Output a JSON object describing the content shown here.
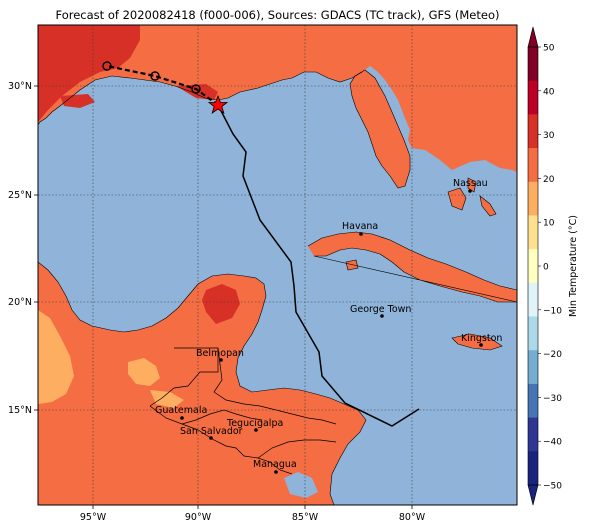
{
  "title": "Forecast of 2020082418 (f000-006), Sources: GDACS (TC track), GFS (Meteo)",
  "colors": {
    "ocean": "#8fb3d9",
    "land_very_hot": "#d73027",
    "land_hot": "#f46d43",
    "land_warm": "#fdae61",
    "grid": "#3b3b3b",
    "track": "#000000",
    "storm_marker": "#ff0000"
  },
  "axes": {
    "lon_labels": [
      "95°W",
      "90°W",
      "85°W",
      "80°W"
    ],
    "lat_labels": [
      "15°N",
      "20°N",
      "25°N",
      "30°N"
    ]
  },
  "cities": [
    {
      "name": "Nassau"
    },
    {
      "name": "Havana"
    },
    {
      "name": "George Town"
    },
    {
      "name": "Kingston"
    },
    {
      "name": "Belmopan"
    },
    {
      "name": "Guatemala"
    },
    {
      "name": "Tegucigalpa"
    },
    {
      "name": "San Salvador"
    },
    {
      "name": "Managua"
    }
  ],
  "track_icon": "hurricane-track-circle-icon",
  "storm_icon": "red-star-icon",
  "colorbar": {
    "label": "Min Temperature (°C)",
    "ticks": [
      "50",
      "40",
      "30",
      "20",
      "10",
      "0",
      "−10",
      "−20",
      "−30",
      "−40",
      "−50"
    ],
    "colors": [
      "#800026",
      "#bd0026",
      "#d73027",
      "#f46d43",
      "#fdae61",
      "#fee090",
      "#ffffbf",
      "#e0f3f8",
      "#abd9e9",
      "#74add1",
      "#4575b4",
      "#313695",
      "#1a237e"
    ]
  }
}
